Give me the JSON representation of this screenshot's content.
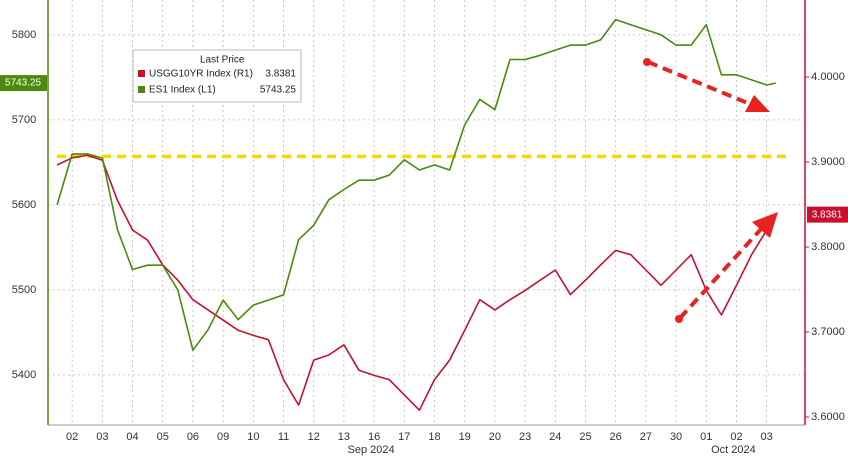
{
  "chart_data": {
    "type": "line",
    "x": [
      0,
      0.5,
      1,
      1.5,
      2,
      2.5,
      3,
      3.5,
      4,
      4.5,
      5,
      5.5,
      6,
      6.5,
      7,
      7.5,
      8,
      8.5,
      9,
      9.5,
      10,
      10.5,
      11,
      11.5,
      12,
      12.5,
      13,
      13.5,
      14,
      14.5,
      15,
      15.5,
      16,
      16.5,
      17,
      17.5,
      18,
      18.5,
      19,
      19.5,
      20,
      20.5,
      21,
      21.5,
      22,
      22.5,
      23,
      23.5,
      23.8
    ],
    "xlim": [
      -0.3,
      24.77
    ],
    "xticks": [
      {
        "value": 0.5,
        "label": "02"
      },
      {
        "value": 1.5,
        "label": "03"
      },
      {
        "value": 2.5,
        "label": "04"
      },
      {
        "value": 3.5,
        "label": "05"
      },
      {
        "value": 4.5,
        "label": "06"
      },
      {
        "value": 5.5,
        "label": "09"
      },
      {
        "value": 6.5,
        "label": "10"
      },
      {
        "value": 7.5,
        "label": "11"
      },
      {
        "value": 8.5,
        "label": "12"
      },
      {
        "value": 9.5,
        "label": "13"
      },
      {
        "value": 10.5,
        "label": "16"
      },
      {
        "value": 11.5,
        "label": "17"
      },
      {
        "value": 12.5,
        "label": "18"
      },
      {
        "value": 13.5,
        "label": "19"
      },
      {
        "value": 14.5,
        "label": "20"
      },
      {
        "value": 15.5,
        "label": "23"
      },
      {
        "value": 16.5,
        "label": "24"
      },
      {
        "value": 17.5,
        "label": "25"
      },
      {
        "value": 18.5,
        "label": "26"
      },
      {
        "value": 19.5,
        "label": "27"
      },
      {
        "value": 20.5,
        "label": "30"
      },
      {
        "value": 21.5,
        "label": "01"
      },
      {
        "value": 22.5,
        "label": "02"
      },
      {
        "value": 23.5,
        "label": "03"
      }
    ],
    "x_groups": [
      {
        "value": 10.4,
        "label": "Sep 2024"
      },
      {
        "value": 22.4,
        "label": "Oct 2024"
      }
    ],
    "ylim": [
      5341,
      5841
    ],
    "yticks": [
      5400,
      5500,
      5600,
      5700,
      5800
    ],
    "y2lim": [
      3.5906,
      4.0906
    ],
    "y2ticks": [
      {
        "value": 3.6,
        "label": "3.6000"
      },
      {
        "value": 3.7,
        "label": "3.7000"
      },
      {
        "value": 3.8,
        "label": "3.8000"
      },
      {
        "value": 3.9,
        "label": "3.9000"
      },
      {
        "value": 4.0,
        "label": "4.0000"
      }
    ],
    "grid": true,
    "legend_title": "Last Price",
    "hline": {
      "value": 5657,
      "color": "#f5d800"
    },
    "series": [
      {
        "name": "USGG10YR Index  (R1)",
        "color": "#c8102e",
        "axis": "y2",
        "values": [
          3.8965,
          3.905,
          3.908,
          3.902,
          3.855,
          3.82,
          3.808,
          3.779,
          3.761,
          3.738,
          3.726,
          3.714,
          3.702,
          3.696,
          3.691,
          3.644,
          3.614,
          3.667,
          3.673,
          3.685,
          3.655,
          3.649,
          3.644,
          3.626,
          3.608,
          3.644,
          3.667,
          3.702,
          3.738,
          3.726,
          3.738,
          3.749,
          3.761,
          3.773,
          3.744,
          3.761,
          3.779,
          3.796,
          3.791,
          3.773,
          3.755,
          3.773,
          3.791,
          3.749,
          3.72,
          3.755,
          3.791,
          3.82,
          3.8381
        ]
      },
      {
        "name": "ES1 Index  (L1)",
        "color": "#4a8a0c",
        "axis": "y",
        "values": [
          5600,
          5660,
          5660,
          5655,
          5571,
          5524,
          5529,
          5529,
          5500,
          5429,
          5453,
          5488,
          5465,
          5482,
          5488,
          5494,
          5559,
          5576,
          5606,
          5618,
          5629,
          5629,
          5635,
          5653,
          5641,
          5647,
          5641,
          5694,
          5724,
          5712,
          5771,
          5771,
          5776,
          5782,
          5788,
          5788,
          5794,
          5818,
          5812,
          5806,
          5800,
          5788,
          5788,
          5812,
          5753,
          5753,
          5747,
          5741,
          5743.25
        ]
      }
    ]
  }
}
